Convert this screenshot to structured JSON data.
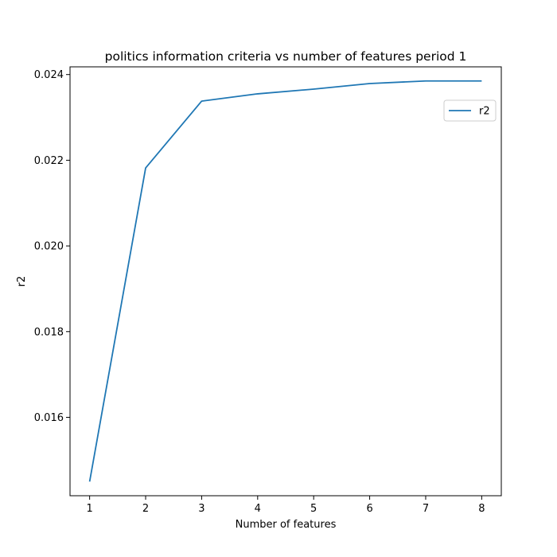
{
  "chart_data": {
    "type": "line",
    "title": "politics information criteria vs number of features period 1",
    "xlabel": "Number of features",
    "ylabel": "r2",
    "x": [
      1,
      2,
      3,
      4,
      5,
      6,
      7,
      8
    ],
    "series": [
      {
        "name": "r2",
        "color": "#1f77b4",
        "values": [
          0.0145,
          0.02182,
          0.02338,
          0.02355,
          0.02366,
          0.02379,
          0.02385,
          0.02385
        ]
      }
    ],
    "xticks": [
      1,
      2,
      3,
      4,
      5,
      6,
      7,
      8
    ],
    "xtick_labels": [
      "1",
      "2",
      "3",
      "4",
      "5",
      "6",
      "7",
      "8"
    ],
    "yticks": [
      0.016,
      0.018,
      0.02,
      0.022,
      0.024
    ],
    "ytick_labels": [
      "0.016",
      "0.018",
      "0.020",
      "0.022",
      "0.024"
    ],
    "xlim": [
      0.65,
      8.35
    ],
    "ylim": [
      0.01417,
      0.02418
    ],
    "grid": false,
    "legend_position": "top-right"
  }
}
